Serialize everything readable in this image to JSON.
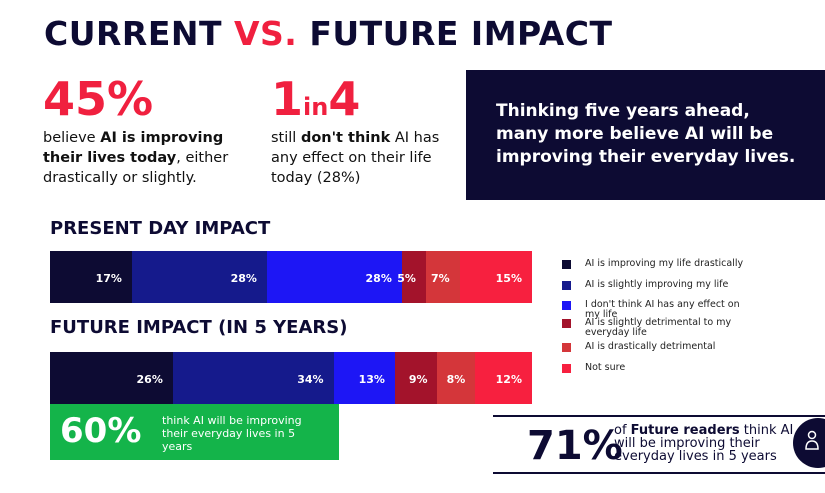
{
  "title": {
    "part1": "CURRENT ",
    "part2": "VS.",
    "part3": " FUTURE IMPACT"
  },
  "stat_left": {
    "value": "45%",
    "line1_pre": "believe ",
    "line1_bold": "AI is improving their lives today",
    "line1_post": ", either drastically or slightly."
  },
  "stat_mid": {
    "value_a": "1",
    "value_in": "in",
    "value_b": "4",
    "pre": "still ",
    "bold": "don't think",
    "post": " AI has any effect on their life today (28%)"
  },
  "callout": {
    "text": "Thinking five years ahead, many more believe AI will be improving their everyday lives."
  },
  "present_heading": "PRESENT DAY IMPACT",
  "future_heading": "FUTURE IMPACT (IN 5 YEARS)",
  "colors": {
    "navy": "#0d0b33",
    "darkblue": "#151a8c",
    "blue": "#1d16f5",
    "darkred": "#a3132b",
    "red": "#d4363a",
    "brightred": "#f7203f",
    "green": "#14b44a"
  },
  "chart_data": {
    "type": "bar",
    "orientation": "horizontal-stacked-100",
    "categories": [
      "PRESENT DAY IMPACT",
      "FUTURE IMPACT (IN 5 YEARS)"
    ],
    "series": [
      {
        "name": "AI is improving my life drastically",
        "values": [
          17,
          26
        ],
        "color": "#0d0b33"
      },
      {
        "name": "AI is slightly improving my life",
        "values": [
          28,
          34
        ],
        "color": "#151a8c"
      },
      {
        "name": "I don't think AI has any effect on my life",
        "values": [
          28,
          13
        ],
        "color": "#1d16f5"
      },
      {
        "name": "AI is slightly detrimental to my everyday life",
        "values": [
          5,
          9
        ],
        "color": "#a3132b"
      },
      {
        "name": "AI is drastically detrimental",
        "values": [
          7,
          8
        ],
        "color": "#d4363a"
      },
      {
        "name": "Not sure",
        "values": [
          15,
          12
        ],
        "color": "#f7203f"
      }
    ],
    "legend_position": "right"
  },
  "green_box": {
    "value": "60%",
    "text": "think AI will be improving their everyday lives in 5 years"
  },
  "future_readers": {
    "value": "71%",
    "pre": "of ",
    "bold": "Future readers",
    "post": " think AI will be improving their everyday lives in 5 years"
  }
}
